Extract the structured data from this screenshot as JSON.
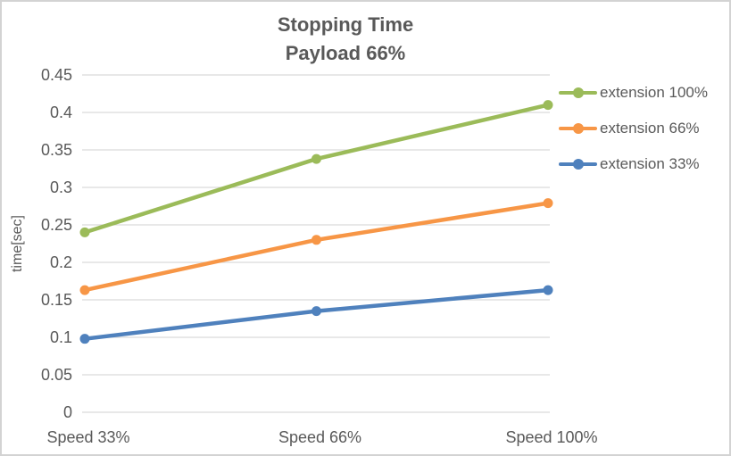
{
  "chart_data": {
    "type": "line",
    "title": "Stopping Time",
    "subtitle": "Payload 66%",
    "ylabel": "time[sec]",
    "xlabel": "",
    "categories": [
      "Speed 33%",
      "Speed 66%",
      "Speed 100%"
    ],
    "series": [
      {
        "name": "extension 100%",
        "color": "#9BBB59",
        "values": [
          0.24,
          0.338,
          0.41
        ]
      },
      {
        "name": "extension 66%",
        "color": "#F79646",
        "values": [
          0.163,
          0.23,
          0.279
        ]
      },
      {
        "name": "extension 33%",
        "color": "#4F81BD",
        "values": [
          0.098,
          0.135,
          0.163
        ]
      }
    ],
    "ylim": [
      0,
      0.45
    ],
    "ytick_step": 0.05,
    "ytick_labels": [
      "0",
      "0.05",
      "0.1",
      "0.15",
      "0.2",
      "0.25",
      "0.3",
      "0.35",
      "0.4",
      "0.45"
    ],
    "grid": true,
    "marker": "circle",
    "legend_position": "right"
  },
  "colors": {
    "gridline": "#D9D9D9",
    "text": "#595959",
    "border": "#D3D3D3",
    "background": "#FFFFFF"
  }
}
